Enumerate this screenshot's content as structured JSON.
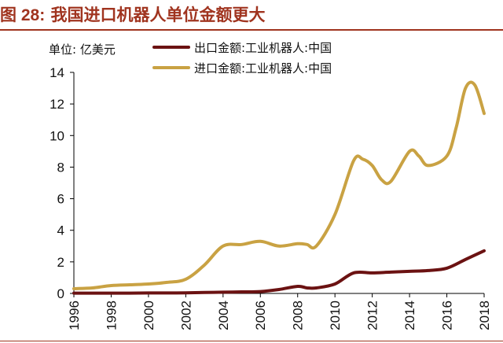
{
  "figure": {
    "number": "图 28:",
    "title": "我国进口机器人单位金额更大",
    "unit": "单位: 亿美元",
    "accent_color": "#a0341f"
  },
  "chart_data": {
    "type": "line",
    "title": "我国进口机器人单位金额更大",
    "xlabel": "",
    "ylabel": "单位: 亿美元",
    "x": [
      1996,
      1997,
      1998,
      1999,
      2000,
      2001,
      2002,
      2003,
      2004,
      2005,
      2006,
      2007,
      2008,
      2009,
      2010,
      2011,
      2012,
      2013,
      2014,
      2015,
      2016,
      2017,
      2018
    ],
    "xlim": [
      1996,
      2018
    ],
    "ylim": [
      0,
      14
    ],
    "x_ticks": [
      "1996",
      "1998",
      "2000",
      "2002",
      "2004",
      "2006",
      "2008",
      "2010",
      "2012",
      "2014",
      "2016",
      "2018"
    ],
    "y_ticks": [
      "0",
      "2",
      "4",
      "6",
      "8",
      "10",
      "12",
      "14"
    ],
    "grid": false,
    "legend_position": "top",
    "series": [
      {
        "name": "出口金额:工业机器人:中国",
        "color": "#6b1212",
        "x": [
          1996,
          1997,
          1998,
          1999,
          2000,
          2001,
          2002,
          2003,
          2004,
          2005,
          2006,
          2007,
          2008,
          2008.5,
          2009,
          2010,
          2011,
          2012,
          2013,
          2014,
          2015,
          2016,
          2017,
          2018
        ],
        "values": [
          0.02,
          0.02,
          0.02,
          0.02,
          0.03,
          0.03,
          0.04,
          0.06,
          0.08,
          0.1,
          0.12,
          0.25,
          0.45,
          0.35,
          0.35,
          0.6,
          1.3,
          1.3,
          1.35,
          1.4,
          1.45,
          1.6,
          2.15,
          2.7
        ]
      },
      {
        "name": "进口金额:工业机器人:中国",
        "color": "#c9a243",
        "x": [
          1996,
          1997,
          1998,
          1999,
          2000,
          2001,
          2002,
          2003,
          2004,
          2005,
          2006,
          2007,
          2008,
          2008.5,
          2009,
          2010,
          2011,
          2011.5,
          2012,
          2012.5,
          2013,
          2014,
          2014.5,
          2015,
          2016,
          2016.5,
          2017,
          2017.5,
          2018
        ],
        "values": [
          0.3,
          0.35,
          0.5,
          0.55,
          0.6,
          0.7,
          0.9,
          1.8,
          3.0,
          3.1,
          3.3,
          3.0,
          3.15,
          3.1,
          3.0,
          5.0,
          8.4,
          8.5,
          8.1,
          7.2,
          7.1,
          9.0,
          8.7,
          8.1,
          8.7,
          10.5,
          13.0,
          13.2,
          11.4
        ]
      }
    ]
  }
}
